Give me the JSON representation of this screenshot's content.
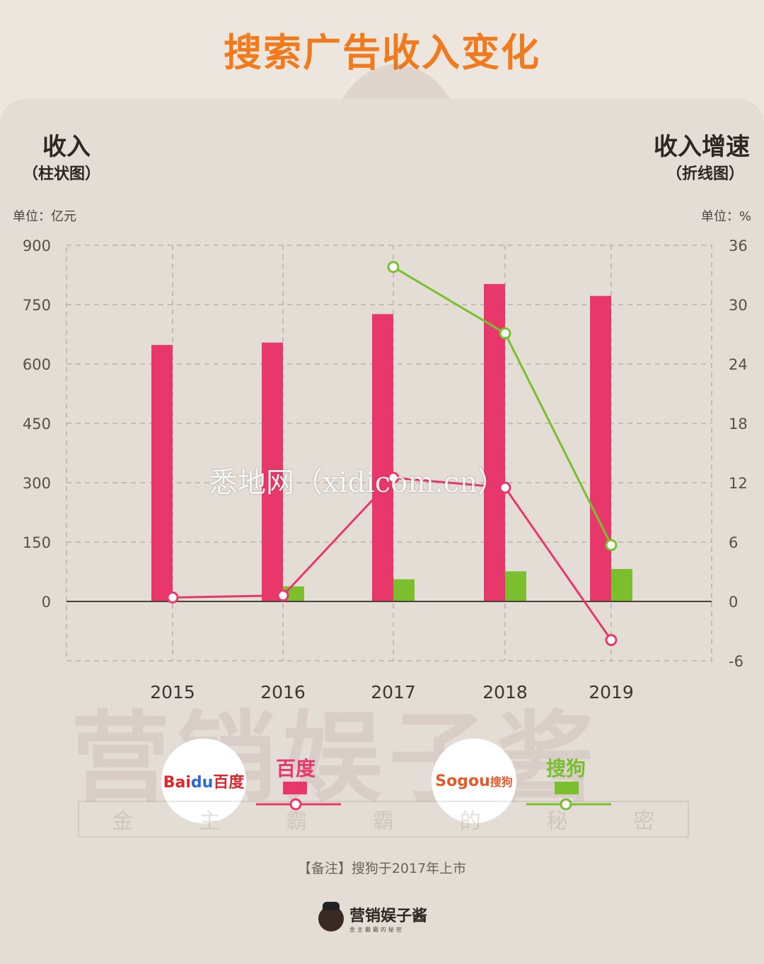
{
  "page": {
    "title": "搜索广告收入变化",
    "left_axis_title": "收入",
    "left_axis_sub": "（柱状图）",
    "right_axis_title": "收入增速",
    "right_axis_sub": "（折线图）",
    "left_unit": "单位：亿元",
    "right_unit": "单位：%",
    "note": "【备注】搜狗于2017年上市",
    "watermark_big": "营销娱子酱",
    "watermark_row": [
      "金",
      "主",
      "霸",
      "霸",
      "的",
      "秘",
      "密"
    ],
    "site_watermark": "悉地网（xidicom.cn）",
    "footer_brand": "营销娱子酱",
    "footer_tagline": "金主霸霸的秘密"
  },
  "legend": {
    "baidu_logo_text": "Bai",
    "baidu_logo_du": "du",
    "baidu_logo_cn": "百度",
    "baidu_label": "百度",
    "sogou_logo_text": "Sogou",
    "sogou_logo_cn": "搜狗",
    "sogou_label": "搜狗"
  },
  "colors": {
    "baidu": "#e8386b",
    "sogou": "#7bbf2f",
    "title": "#f07a1c"
  },
  "chart_data": {
    "type": "bar",
    "categories": [
      "2015",
      "2016",
      "2017",
      "2018",
      "2019"
    ],
    "left_ylim": [
      -150,
      900
    ],
    "left_ticks": [
      0,
      150,
      300,
      450,
      600,
      750,
      900
    ],
    "right_ylim": [
      -6,
      36
    ],
    "right_ticks": [
      -6,
      0,
      6,
      12,
      18,
      24,
      30,
      36
    ],
    "bars": [
      {
        "name": "百度",
        "values": [
          648,
          654,
          726,
          802,
          772
        ]
      },
      {
        "name": "搜狗",
        "values": [
          null,
          38,
          56,
          76,
          82
        ]
      }
    ],
    "lines": [
      {
        "name": "百度",
        "values": [
          0.4,
          0.6,
          12.5,
          11.5,
          -3.9
        ]
      },
      {
        "name": "搜狗",
        "values": [
          null,
          null,
          33.8,
          27.1,
          5.7
        ]
      }
    ]
  }
}
